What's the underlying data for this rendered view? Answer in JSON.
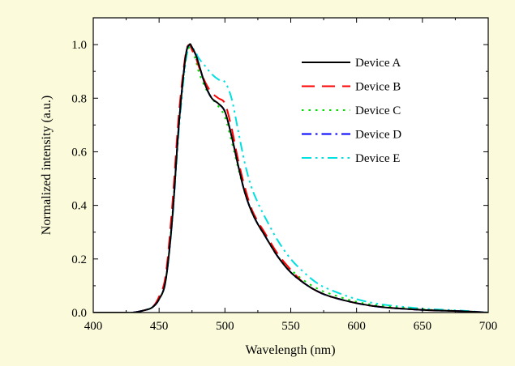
{
  "chart_data": {
    "type": "line",
    "title": "",
    "xlabel": "Wavelength (nm)",
    "ylabel": "Normalized intensity (a.u.)",
    "xlim": [
      400,
      700
    ],
    "ylim": [
      0,
      1.1
    ],
    "xticks": [
      400,
      450,
      500,
      550,
      600,
      650,
      700
    ],
    "xtick_labels": [
      "400",
      "450",
      "500",
      "550",
      "600",
      "650",
      "700"
    ],
    "yticks": [
      0,
      0.2,
      0.4,
      0.6,
      0.8,
      1.0
    ],
    "ytick_labels": [
      "0.0",
      "0.2",
      "0.4",
      "0.6",
      "0.8",
      "1.0"
    ],
    "grid": false,
    "legend_position": "top-right",
    "series": [
      {
        "name": "Device A",
        "color": "#000000",
        "dash": "solid",
        "x": [
          400,
          420,
          430,
          440,
          445,
          450,
          455,
          460,
          465,
          470,
          473,
          475,
          478,
          480,
          485,
          490,
          495,
          500,
          505,
          510,
          515,
          520,
          525,
          530,
          540,
          550,
          560,
          570,
          580,
          600,
          620,
          650,
          680,
          700
        ],
        "y": [
          0.0,
          0.0,
          0.0,
          0.01,
          0.02,
          0.05,
          0.12,
          0.35,
          0.7,
          0.95,
          1.0,
          0.99,
          0.96,
          0.93,
          0.85,
          0.8,
          0.78,
          0.75,
          0.66,
          0.55,
          0.45,
          0.38,
          0.33,
          0.29,
          0.21,
          0.15,
          0.11,
          0.08,
          0.06,
          0.035,
          0.02,
          0.01,
          0.005,
          0.0
        ]
      },
      {
        "name": "Device B",
        "color": "#ff0000",
        "dash": "long-dash",
        "x": [
          400,
          420,
          430,
          440,
          445,
          450,
          455,
          460,
          465,
          470,
          473,
          475,
          478,
          480,
          485,
          490,
          495,
          500,
          505,
          510,
          515,
          520,
          525,
          530,
          540,
          550,
          560,
          570,
          580,
          600,
          620,
          650,
          680,
          700
        ],
        "y": [
          0.0,
          0.0,
          0.0,
          0.01,
          0.02,
          0.06,
          0.14,
          0.4,
          0.74,
          0.96,
          1.0,
          0.98,
          0.95,
          0.92,
          0.86,
          0.82,
          0.8,
          0.78,
          0.69,
          0.57,
          0.47,
          0.39,
          0.34,
          0.3,
          0.22,
          0.16,
          0.11,
          0.08,
          0.06,
          0.035,
          0.02,
          0.01,
          0.005,
          0.0
        ]
      },
      {
        "name": "Device C",
        "color": "#00e000",
        "dash": "dot",
        "x": [
          400,
          420,
          430,
          440,
          445,
          450,
          455,
          460,
          465,
          470,
          473,
          475,
          478,
          480,
          485,
          490,
          495,
          500,
          505,
          510,
          515,
          520,
          525,
          530,
          540,
          550,
          560,
          570,
          580,
          600,
          620,
          650,
          680,
          700
        ],
        "y": [
          0.0,
          0.0,
          0.0,
          0.01,
          0.02,
          0.05,
          0.12,
          0.36,
          0.7,
          0.94,
          0.99,
          0.98,
          0.94,
          0.9,
          0.84,
          0.8,
          0.77,
          0.73,
          0.64,
          0.54,
          0.45,
          0.38,
          0.33,
          0.29,
          0.21,
          0.16,
          0.12,
          0.09,
          0.07,
          0.04,
          0.025,
          0.012,
          0.005,
          0.0
        ]
      },
      {
        "name": "Device D",
        "color": "#0000ff",
        "dash": "dash-dot",
        "x": [
          400,
          420,
          430,
          440,
          445,
          450,
          455,
          460,
          465,
          470,
          473,
          475,
          478,
          480,
          485,
          490,
          495,
          500,
          505,
          510,
          515,
          520,
          525,
          530,
          540,
          550,
          560,
          570,
          580,
          600,
          620,
          650,
          680,
          700
        ],
        "y": [
          0.0,
          0.0,
          0.0,
          0.01,
          0.02,
          0.05,
          0.12,
          0.35,
          0.7,
          0.95,
          1.0,
          0.99,
          0.96,
          0.93,
          0.85,
          0.8,
          0.78,
          0.75,
          0.66,
          0.55,
          0.45,
          0.38,
          0.33,
          0.29,
          0.21,
          0.15,
          0.11,
          0.08,
          0.06,
          0.035,
          0.02,
          0.01,
          0.005,
          0.0
        ]
      },
      {
        "name": "Device E",
        "color": "#00e0e0",
        "dash": "dash-dot-dot",
        "x": [
          400,
          420,
          430,
          440,
          445,
          450,
          455,
          460,
          465,
          470,
          473,
          475,
          478,
          480,
          485,
          490,
          495,
          500,
          505,
          510,
          515,
          520,
          525,
          530,
          540,
          550,
          560,
          570,
          580,
          600,
          620,
          650,
          680,
          700
        ],
        "y": [
          0.0,
          0.0,
          0.0,
          0.01,
          0.02,
          0.05,
          0.12,
          0.34,
          0.68,
          0.93,
          0.99,
          0.99,
          0.97,
          0.95,
          0.92,
          0.89,
          0.87,
          0.86,
          0.8,
          0.68,
          0.56,
          0.47,
          0.41,
          0.36,
          0.27,
          0.2,
          0.15,
          0.11,
          0.085,
          0.05,
          0.03,
          0.015,
          0.007,
          0.0
        ]
      }
    ]
  }
}
